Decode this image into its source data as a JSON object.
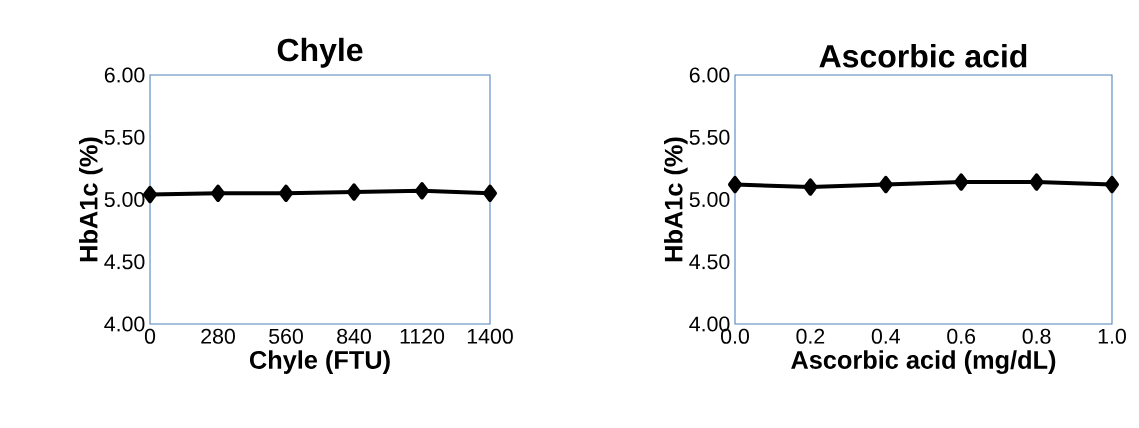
{
  "chart_data": [
    {
      "type": "line",
      "title": "Chyle",
      "xlabel": "Chyle (FTU)",
      "ylabel": "HbA1c (%)",
      "categories": [
        "0",
        "280",
        "560",
        "840",
        "1120",
        "1400"
      ],
      "series": [
        {
          "color": "#000000",
          "values": [
            5.04,
            5.05,
            5.05,
            5.06,
            5.07,
            5.05
          ]
        }
      ],
      "ylim": [
        4,
        6
      ],
      "yticks": [
        {
          "value": 4,
          "label": "4.00"
        },
        {
          "value": 4.5,
          "label": "4.50"
        },
        {
          "value": 5,
          "label": "5.00"
        },
        {
          "value": 5.5,
          "label": "5.50"
        },
        {
          "value": 6,
          "label": "6.00"
        }
      ],
      "marker": "diamond",
      "grid": false
    },
    {
      "type": "line",
      "title": "Ascorbic acid",
      "xlabel": "Ascorbic acid (mg/dL)",
      "ylabel": "HbA1c (%)",
      "categories": [
        "0.0",
        "0.2",
        "0.4",
        "0.6",
        "0.8",
        "1.0"
      ],
      "series": [
        {
          "color": "#000000",
          "values": [
            5.12,
            5.1,
            5.12,
            5.14,
            5.14,
            5.12
          ]
        }
      ],
      "ylim": [
        4,
        6
      ],
      "yticks": [
        {
          "value": 4,
          "label": "4.00"
        },
        {
          "value": 4.5,
          "label": "4.50"
        },
        {
          "value": 5,
          "label": "5.00"
        },
        {
          "value": 5.5,
          "label": "5.50"
        },
        {
          "value": 6,
          "label": "6.00"
        }
      ],
      "marker": "diamond",
      "grid": false
    }
  ]
}
